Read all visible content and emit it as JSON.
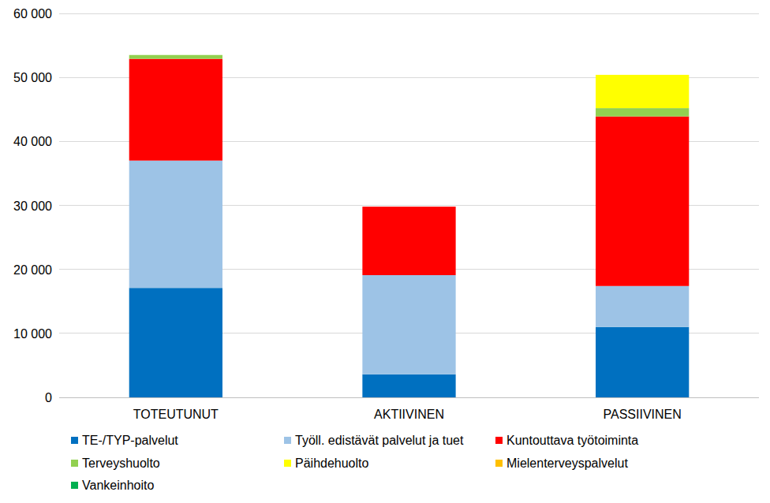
{
  "chart_data": {
    "type": "bar",
    "stacked": true,
    "grid": true,
    "legend": "bottom",
    "categories": [
      "TOTEUTUNUT",
      "AKTIIVINEN",
      "PASSIIVINEN"
    ],
    "series": [
      {
        "name": "TE-/TYP-palvelut",
        "color": "#0070c0",
        "values": [
          17100,
          3600,
          11000
        ]
      },
      {
        "name": "Työll. edistävät palvelut ja tuet",
        "color": "#9dc3e6",
        "values": [
          19900,
          15500,
          6400
        ]
      },
      {
        "name": "Kuntouttava työtoiminta",
        "color": "#ff0000",
        "values": [
          15900,
          10700,
          26500
        ]
      },
      {
        "name": "Terveyshuolto",
        "color": "#92d050",
        "values": [
          600,
          0,
          1300
        ]
      },
      {
        "name": "Päihdehuolto",
        "color": "#ffff00",
        "values": [
          0,
          0,
          5200
        ]
      },
      {
        "name": "Mielenterveyspalvelut",
        "color": "#ffc000",
        "values": [
          0,
          0,
          0
        ]
      },
      {
        "name": "Vankeinhoito",
        "color": "#00b050",
        "values": [
          0,
          0,
          0
        ]
      }
    ],
    "ylim": [
      0,
      60000
    ],
    "yticks": [
      0,
      {
        "value": 10000,
        "label": "10 000"
      },
      {
        "value": 20000,
        "label": "20 000"
      },
      {
        "value": 30000,
        "label": "30 000"
      },
      {
        "value": 40000,
        "label": "40 000"
      },
      {
        "value": 50000,
        "label": "50 000"
      },
      {
        "value": 60000,
        "label": "60 000"
      }
    ]
  }
}
